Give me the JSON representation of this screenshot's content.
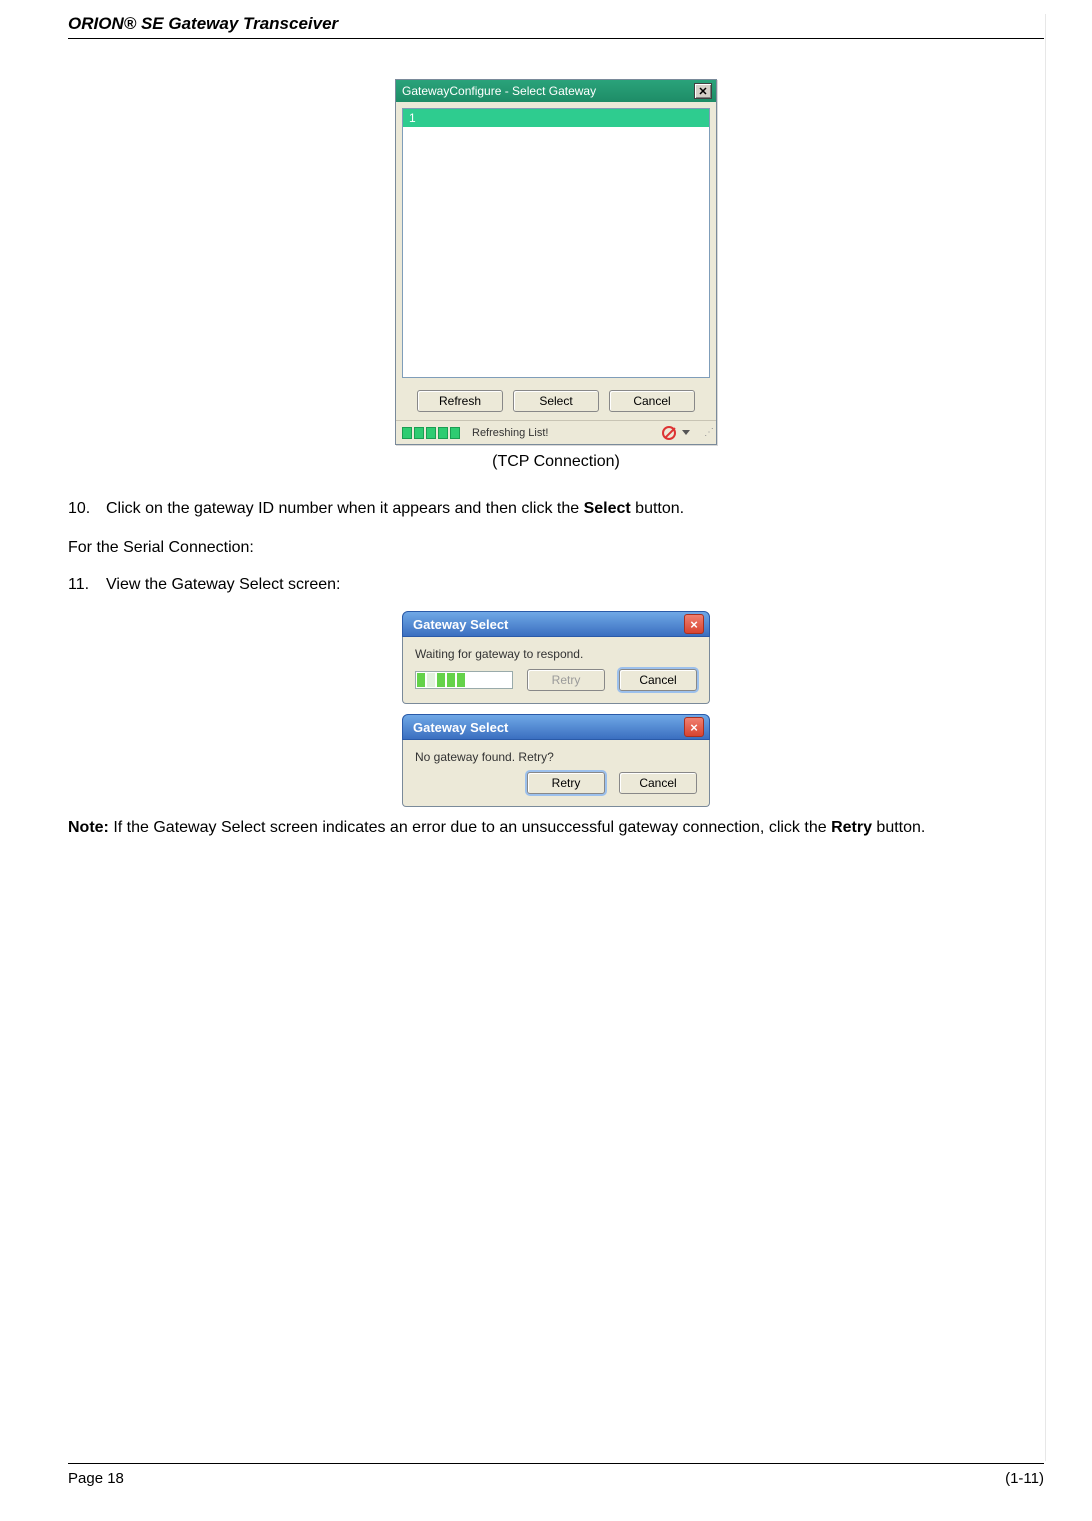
{
  "header": {
    "title": "ORION® SE Gateway Transceiver"
  },
  "dialog_tcp": {
    "title": "GatewayConfigure - Select Gateway",
    "list_items": [
      "1"
    ],
    "buttons": {
      "refresh": "Refresh",
      "select": "Select",
      "cancel": "Cancel"
    },
    "status_text": "Refreshing List!",
    "progress_cells": 5
  },
  "caption_tcp": "(TCP Connection)",
  "step10": {
    "num": "10.",
    "pre": "Click on the gateway ID number when it appears and then click the ",
    "bold": "Select",
    "post": " button."
  },
  "serial_intro": "For the Serial Connection:",
  "step11": {
    "num": "11.",
    "text": "View the Gateway Select screen:"
  },
  "dialog_wait": {
    "title": "Gateway Select",
    "message": "Waiting for gateway to respond.",
    "retry": "Retry",
    "cancel": "Cancel"
  },
  "dialog_nogw": {
    "title": "Gateway Select",
    "message": "No gateway found. Retry?",
    "retry": "Retry",
    "cancel": "Cancel"
  },
  "note": {
    "label": "Note:",
    "pre": "  If the Gateway Select screen indicates an error due to an unsuccessful gateway connection, click the ",
    "bold": "Retry",
    "post": " button."
  },
  "footer": {
    "left": "Page 18",
    "right": "(1-11)"
  },
  "colors": {
    "titlebar_green": "#1e8c67",
    "sel_green": "#2ecc8f",
    "xp_blue": "#3b6fc0",
    "panel": "#ece9d8"
  }
}
